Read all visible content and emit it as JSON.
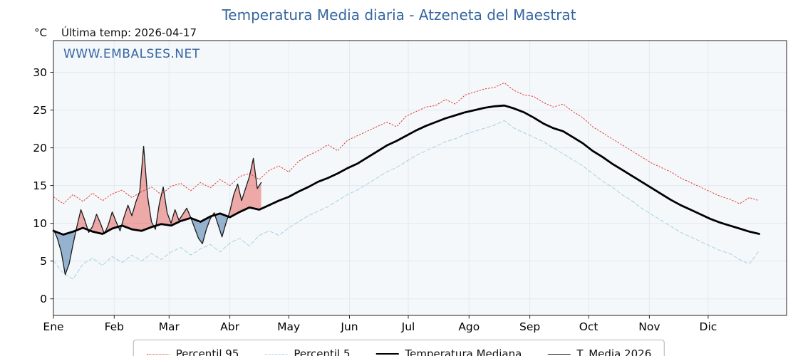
{
  "header": {
    "last_temp": "Última temp: 2026-04-17"
  },
  "watermark": "WWW.EMBALSES.NET",
  "chart_data": {
    "type": "line",
    "title": "Temperatura Media diaria - Atzeneta del Maestrat",
    "ylabel": "°C",
    "x_tick_labels": [
      "Ene",
      "Feb",
      "Mar",
      "Abr",
      "May",
      "Jun",
      "Jul",
      "Ago",
      "Sep",
      "Oct",
      "Nov",
      "Dic"
    ],
    "month_start_days": [
      1,
      32,
      60,
      91,
      121,
      152,
      182,
      213,
      244,
      274,
      305,
      335
    ],
    "y_ticks": [
      0,
      5,
      10,
      15,
      20,
      25,
      30
    ],
    "xlim": [
      1,
      375
    ],
    "ylim": [
      -2.2,
      34.2
    ],
    "grid": true,
    "legend_position": "bottom",
    "plot_bg": "#f5f8fb",
    "grid_color": "#e2e9f0",
    "spine_color": "#222222",
    "axis_text_color": "#000000",
    "title_color": "#35659f",
    "watermark_color": "#35659f",
    "series": [
      {
        "name": "Percentil 95",
        "style": "dotted",
        "color": "#e03c31",
        "width": 1.0,
        "x_start": 1,
        "x_step": 5,
        "values": [
          13.5,
          12.6,
          13.8,
          12.9,
          14.0,
          13.0,
          13.9,
          14.4,
          13.4,
          14.2,
          14.8,
          13.8,
          14.9,
          15.3,
          14.3,
          15.4,
          14.7,
          15.8,
          15.0,
          16.2,
          16.6,
          15.8,
          17.0,
          17.6,
          16.8,
          18.2,
          19.0,
          19.6,
          20.4,
          19.6,
          21.0,
          21.6,
          22.2,
          22.8,
          23.4,
          22.8,
          24.2,
          24.8,
          25.4,
          25.6,
          26.4,
          25.8,
          27.0,
          27.4,
          27.8,
          28.0,
          28.6,
          27.6,
          27.0,
          26.8,
          26.0,
          25.4,
          25.8,
          24.8,
          24.0,
          22.8,
          22.0,
          21.2,
          20.4,
          19.6,
          18.8,
          18.0,
          17.4,
          16.8,
          16.0,
          15.4,
          14.8,
          14.2,
          13.6,
          13.2,
          12.6,
          13.4,
          13.0
        ]
      },
      {
        "name": "Percentil 5",
        "style": "dashed",
        "color": "#a6d1e3",
        "width": 1.0,
        "x_start": 1,
        "x_step": 5,
        "values": [
          5.0,
          3.4,
          2.6,
          4.6,
          5.4,
          4.4,
          5.6,
          4.8,
          5.8,
          5.0,
          6.0,
          5.2,
          6.2,
          6.8,
          5.8,
          6.6,
          7.2,
          6.2,
          7.4,
          8.0,
          7.0,
          8.4,
          9.0,
          8.4,
          9.4,
          10.2,
          11.0,
          11.6,
          12.2,
          13.0,
          13.8,
          14.4,
          15.2,
          16.0,
          16.8,
          17.4,
          18.2,
          19.0,
          19.6,
          20.2,
          20.8,
          21.2,
          21.8,
          22.2,
          22.6,
          23.0,
          23.6,
          22.6,
          22.0,
          21.4,
          20.8,
          20.0,
          19.2,
          18.4,
          17.6,
          16.6,
          15.6,
          14.8,
          13.8,
          13.0,
          12.0,
          11.2,
          10.4,
          9.6,
          8.8,
          8.2,
          7.6,
          7.0,
          6.4,
          6.0,
          5.2,
          4.6,
          6.4
        ]
      },
      {
        "name": "Temperatura Mediana",
        "style": "solid",
        "color": "#000000",
        "width": 2.8,
        "x_start": 1,
        "x_step": 5,
        "values": [
          9.0,
          8.5,
          8.9,
          9.4,
          8.9,
          8.6,
          9.3,
          9.7,
          9.2,
          9.0,
          9.5,
          9.9,
          9.7,
          10.3,
          10.7,
          10.2,
          10.9,
          11.3,
          10.8,
          11.5,
          12.1,
          11.8,
          12.4,
          13.0,
          13.5,
          14.2,
          14.8,
          15.5,
          16.0,
          16.6,
          17.3,
          17.9,
          18.7,
          19.5,
          20.3,
          20.9,
          21.6,
          22.3,
          22.9,
          23.4,
          23.9,
          24.3,
          24.7,
          25.0,
          25.3,
          25.5,
          25.6,
          25.2,
          24.7,
          24.0,
          23.2,
          22.6,
          22.2,
          21.4,
          20.6,
          19.6,
          18.8,
          17.9,
          17.1,
          16.3,
          15.5,
          14.7,
          13.9,
          13.1,
          12.4,
          11.8,
          11.2,
          10.6,
          10.1,
          9.7,
          9.3,
          8.9,
          8.6
        ]
      },
      {
        "name": "T. Media 2026",
        "style": "solid",
        "color": "#1a1a1a",
        "width": 1.3,
        "x_start": 1,
        "x_step": 2,
        "fill_vs": "Temperatura Mediana",
        "fill_above": "rgba(224,60,49,0.42)",
        "fill_below": "rgba(70,120,170,0.55)",
        "values": [
          9.2,
          8.0,
          6.2,
          3.2,
          4.6,
          7.2,
          9.6,
          11.8,
          10.4,
          8.8,
          9.6,
          11.2,
          10.0,
          8.6,
          9.8,
          11.5,
          10.2,
          9.0,
          10.8,
          12.4,
          11.0,
          12.8,
          14.2,
          20.2,
          13.6,
          10.2,
          9.2,
          12.6,
          14.8,
          11.4,
          10.0,
          11.8,
          10.4,
          11.2,
          12.0,
          10.8,
          9.4,
          8.0,
          7.3,
          9.2,
          10.6,
          11.4,
          9.8,
          8.2,
          10.0,
          11.6,
          13.8,
          15.2,
          13.0,
          14.6,
          16.2,
          18.6,
          14.6,
          15.4
        ]
      }
    ]
  }
}
